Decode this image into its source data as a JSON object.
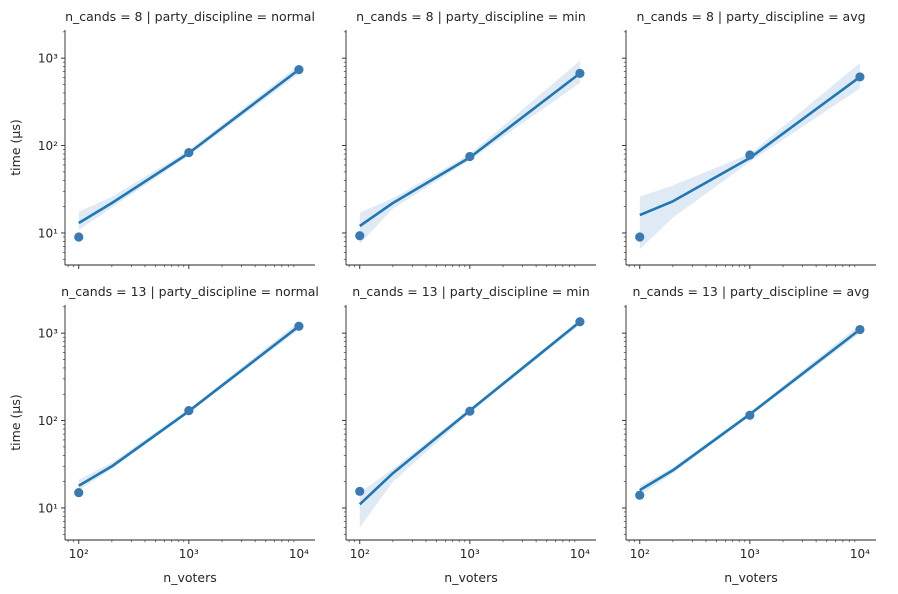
{
  "figure": {
    "row_ylabel": "time (µs)",
    "col_xlabel": "n_voters"
  },
  "chart_data": {
    "type": "scatter",
    "xscale": "log",
    "yscale": "log",
    "xlim": [
      75,
      14000
    ],
    "ylim": [
      4.3,
      2100
    ],
    "x_ticks": [
      100,
      1000,
      10000
    ],
    "x_tick_labels": [
      "10²",
      "10³",
      "10⁴"
    ],
    "y_ticks": [
      10,
      100,
      1000
    ],
    "y_tick_labels": [
      "10¹",
      "10²",
      "10³"
    ],
    "xlabel": "n_voters",
    "ylabel": "time (µs)",
    "grid": false,
    "point_color": "#3a7ab3",
    "line_color": "#1f77b4",
    "band_color": "#dbe6f2",
    "panels": [
      {
        "title": "n_cands = 8 | party_discipline = normal",
        "x": [
          100,
          1000,
          10000
        ],
        "y": [
          9,
          83,
          740
        ],
        "fit": [
          13,
          22,
          82,
          740
        ],
        "ci_low": [
          10.8,
          19.5,
          77,
          660
        ],
        "ci_high": [
          17.5,
          26,
          88,
          830
        ]
      },
      {
        "title": "n_cands = 8 | party_discipline = min",
        "x": [
          100,
          1000,
          10000
        ],
        "y": [
          9.3,
          75,
          670
        ],
        "fit": [
          12,
          22,
          73,
          670
        ],
        "ci_low": [
          7.5,
          19,
          68,
          520
        ],
        "ci_high": [
          17,
          25,
          80,
          930
        ]
      },
      {
        "title": "n_cands = 8 | party_discipline = avg",
        "x": [
          100,
          1000,
          10000
        ],
        "y": [
          9,
          78,
          610
        ],
        "fit": [
          16,
          23,
          72,
          610
        ],
        "ci_low": [
          6.5,
          15,
          65,
          450
        ],
        "ci_high": [
          26,
          35,
          80,
          880
        ]
      },
      {
        "title": "n_cands = 13 | party_discipline = normal",
        "x": [
          100,
          1000,
          10000
        ],
        "y": [
          15,
          130,
          1200
        ],
        "fit": [
          18,
          30,
          128,
          1200
        ],
        "ci_low": [
          16,
          28,
          123,
          1100
        ],
        "ci_high": [
          21,
          33,
          135,
          1350
        ]
      },
      {
        "title": "n_cands = 13 | party_discipline = min",
        "x": [
          100,
          1000,
          10000
        ],
        "y": [
          15.5,
          128,
          1350
        ],
        "fit": [
          11,
          25,
          130,
          1350
        ],
        "ci_low": [
          6,
          20,
          122,
          1250
        ],
        "ci_high": [
          15,
          28,
          137,
          1430
        ]
      },
      {
        "title": "n_cands = 13 | party_discipline = avg",
        "x": [
          100,
          1000,
          10000
        ],
        "y": [
          14,
          115,
          1100
        ],
        "fit": [
          16,
          27,
          118,
          1100
        ],
        "ci_low": [
          14,
          25,
          112,
          1000
        ],
        "ci_high": [
          18,
          29,
          124,
          1250
        ]
      }
    ]
  }
}
